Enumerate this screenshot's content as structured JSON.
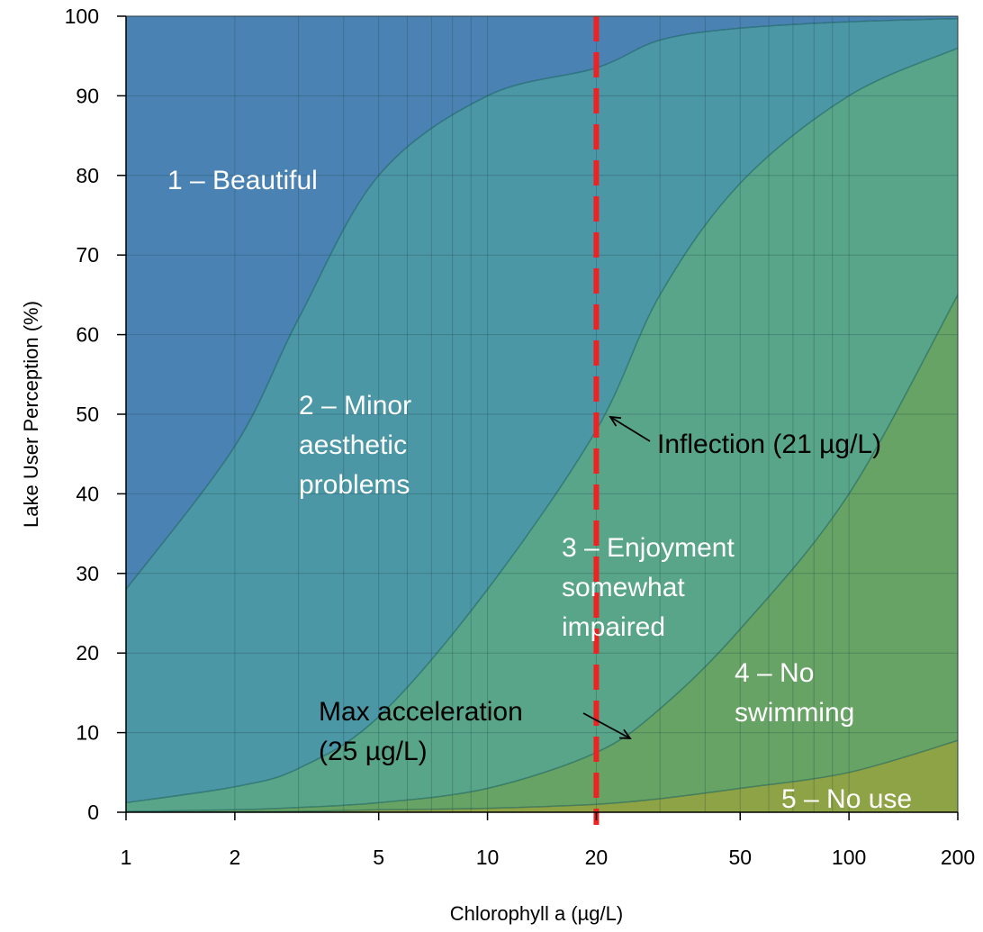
{
  "chart_data": {
    "type": "area",
    "xlabel": "Chlorophyll a (µg/L)",
    "ylabel": "Lake User Perception (%)",
    "xscale": "log",
    "xlim": [
      1,
      200
    ],
    "ylim": [
      0,
      100
    ],
    "x_ticks": [
      1,
      2,
      5,
      10,
      20,
      50,
      100,
      200
    ],
    "x_tick_labels": [
      "1",
      "2",
      "5",
      "10",
      "20",
      "50",
      "100",
      "200"
    ],
    "y_ticks": [
      0,
      10,
      20,
      30,
      40,
      50,
      60,
      70,
      80,
      90,
      100
    ],
    "y_tick_labels": [
      "0",
      "10",
      "20",
      "30",
      "40",
      "50",
      "60",
      "70",
      "80",
      "90",
      "100"
    ],
    "grid": true,
    "x": [
      1,
      2,
      3,
      5,
      10,
      20,
      30,
      50,
      100,
      200
    ],
    "boundaries": [
      {
        "between": "1–2",
        "values": [
          28,
          46,
          62,
          80,
          90,
          93.5,
          97,
          98.5,
          99.3,
          99.7
        ]
      },
      {
        "between": "2–3",
        "values": [
          1.2,
          3.2,
          5.5,
          12,
          28,
          48,
          65,
          79,
          90,
          96
        ]
      },
      {
        "between": "3–4",
        "values": [
          0.1,
          0.3,
          0.6,
          1.2,
          3,
          7.5,
          13,
          23,
          40,
          65
        ]
      },
      {
        "between": "4–5",
        "values": [
          0,
          0.05,
          0.1,
          0.3,
          0.5,
          1,
          1.7,
          3,
          5,
          9
        ]
      }
    ],
    "regions": [
      {
        "label_lines": [
          "1 – Beautiful"
        ],
        "color": "#4a83b3"
      },
      {
        "label_lines": [
          "2 – Minor",
          "aesthetic",
          "problems"
        ],
        "color": "#4b97a5"
      },
      {
        "label_lines": [
          "3 – Enjoyment",
          "somewhat",
          "impaired"
        ],
        "color": "#58a58a"
      },
      {
        "label_lines": [
          "4 – No",
          "swimming"
        ],
        "color": "#67a364"
      },
      {
        "label_lines": [
          "5 – No use"
        ],
        "color": "#8ea345"
      }
    ],
    "reference_line": {
      "x": 20,
      "color": "#ee2222",
      "style": "dashed"
    },
    "annotations": [
      {
        "label_lines": [
          "Inflection  (21 µg/L)"
        ],
        "x": 21,
        "y": 49
      },
      {
        "label_lines": [
          "Max acceleration",
          "(25 µg/L)"
        ],
        "x": 25,
        "y": 9
      }
    ]
  }
}
